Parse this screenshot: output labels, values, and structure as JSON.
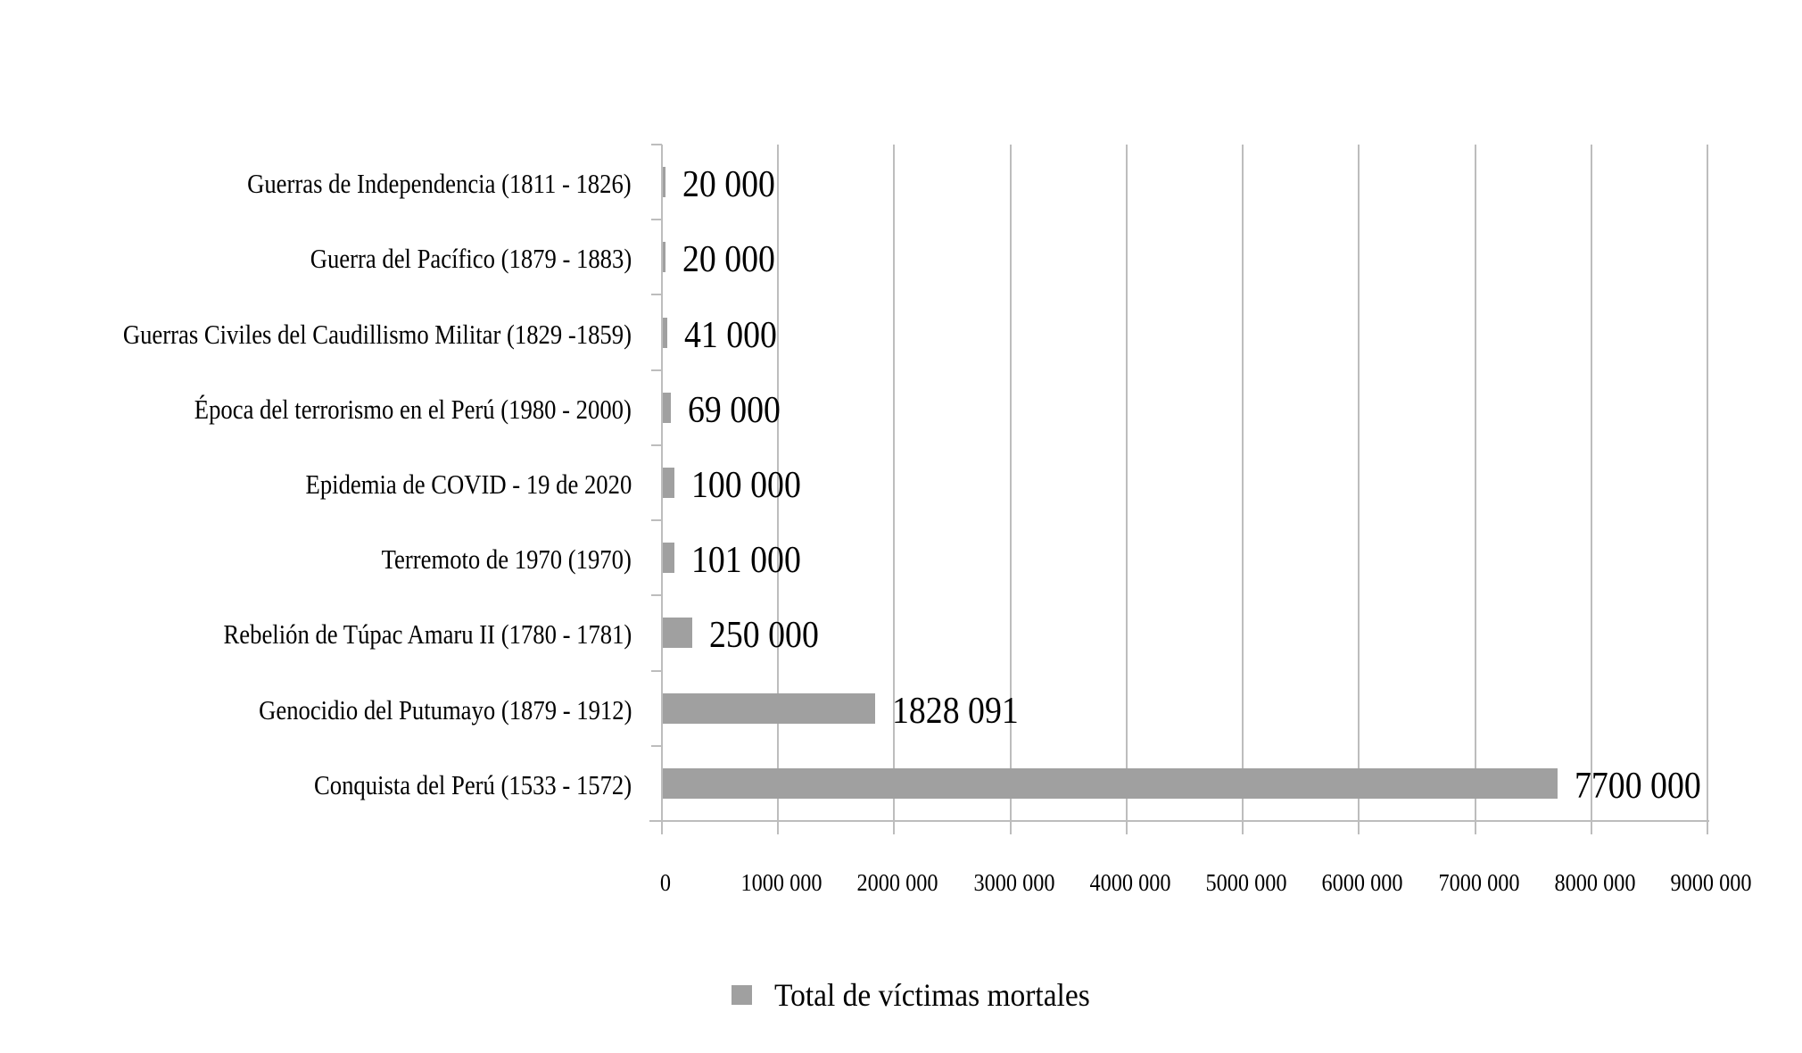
{
  "chart_data": {
    "type": "bar",
    "orientation": "horizontal",
    "title": "",
    "xlabel": "",
    "ylabel": "",
    "xlim": [
      0,
      9000000
    ],
    "grid": {
      "vertical": true,
      "horizontal": false
    },
    "legend_position": "bottom",
    "bar_color": "#a0a0a0",
    "categories": [
      "Guerras de Independencia (1811 - 1826)",
      "Guerra del Pacífico (1879 - 1883)",
      "Guerras Civiles del Caudillismo Militar (1829 -1859)",
      "Época del terrorismo en el Perú (1980 - 2000)",
      "Epidemia de COVID - 19 de 2020",
      "Terremoto de 1970 (1970)",
      "Rebelión de Túpac Amaru II (1780 - 1781)",
      "Genocidio del Putumayo (1879 - 1912)",
      "Conquista del Perú (1533 - 1572)"
    ],
    "series": [
      {
        "name": "Total de víctimas mortales",
        "values": [
          20000,
          20000,
          41000,
          69000,
          100000,
          101000,
          250000,
          1828091,
          7700000
        ]
      }
    ],
    "value_labels": [
      "20 000",
      "20 000",
      "41 000",
      "69 000",
      "100 000",
      "101 000",
      "250 000",
      "1828 091",
      "7700 000"
    ],
    "x_tick_labels": [
      "0",
      "1000 000",
      "2000 000",
      "3000 000",
      "4000 000",
      "5000 000",
      "6000 000",
      "7000 000",
      "8000 000",
      "9000 000"
    ],
    "x_ticks": [
      0,
      1000000,
      2000000,
      3000000,
      4000000,
      5000000,
      6000000,
      7000000,
      8000000,
      9000000
    ]
  },
  "legend": {
    "label": "Total de víctimas mortales",
    "color": "#a0a0a0"
  }
}
